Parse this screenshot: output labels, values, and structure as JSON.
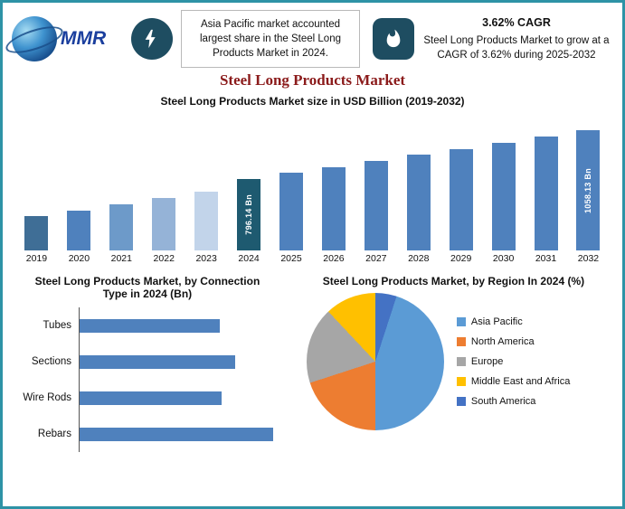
{
  "colors": {
    "frame_border": "#2e93a6",
    "title_color": "#8b1b1b",
    "icon_bg": "#1e4d61",
    "logo_blue": "#1b3f9e"
  },
  "header": {
    "logo_text": "MMR",
    "highlight_note": "Asia Pacific market accounted largest share in the Steel Long Products Market in 2024.",
    "cagr_title": "3.62% CAGR",
    "cagr_note": "Steel Long Products Market to grow at a CAGR of 3.62% during 2025-2032"
  },
  "page_title": "Steel Long Products Market",
  "chart_data": [
    {
      "type": "bar",
      "title": "Steel Long Products Market size in USD Billion (2019-2032)",
      "categories": [
        "2019",
        "2020",
        "2021",
        "2022",
        "2023",
        "2024",
        "2025",
        "2026",
        "2027",
        "2028",
        "2029",
        "2030",
        "2031",
        "2032"
      ],
      "values": [
        600,
        632,
        665,
        698,
        732,
        796.14,
        830,
        862,
        894,
        926,
        958,
        991,
        1024,
        1058.13
      ],
      "ylabel": "USD Billion",
      "ylim": [
        0,
        1100
      ],
      "grid": false,
      "bar_labels": {
        "2024": "796.14 Bn",
        "2032": "1058.13 Bn"
      },
      "bar_colors": [
        "#3f6e96",
        "#4f81bd",
        "#6d9ac9",
        "#95b3d7",
        "#c2d4ea",
        "#1e5a70",
        "#4f81bd",
        "#4f81bd",
        "#4f81bd",
        "#4f81bd",
        "#4f81bd",
        "#4f81bd",
        "#4f81bd",
        "#4f81bd"
      ]
    },
    {
      "type": "bar",
      "orientation": "horizontal",
      "title": "Steel Long Products Market, by Connection Type in 2024 (Bn)",
      "categories": [
        "Tubes",
        "Sections",
        "Wire Rods",
        "Rebars"
      ],
      "values": [
        217,
        241,
        221,
        300
      ],
      "bar_color": "#4f81bd",
      "grid": false
    },
    {
      "type": "pie",
      "title": "Steel Long Products Market, by Region In 2024 (%)",
      "labels": [
        "Asia Pacific",
        "North America",
        "Europe",
        "Middle East and Africa",
        "South America"
      ],
      "values": [
        45,
        20,
        18,
        12,
        5
      ],
      "colors": [
        "#5b9bd5",
        "#ed7d31",
        "#a6a6a6",
        "#ffc000",
        "#4472c4"
      ],
      "start_angle_deg": 18,
      "legend_position": "right"
    }
  ]
}
